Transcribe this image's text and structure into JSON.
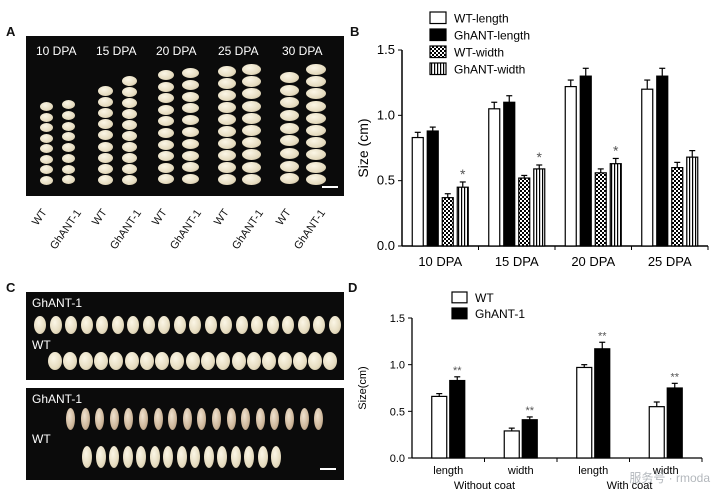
{
  "panels": {
    "a": {
      "letter": "A",
      "stages": [
        "10 DPA",
        "15 DPA",
        "20 DPA",
        "25 DPA",
        "30 DPA"
      ],
      "genotypes": [
        "WT",
        "GhANT-1"
      ]
    },
    "b": {
      "letter": "B"
    },
    "c": {
      "letter": "C",
      "top_labels": [
        "GhANT-1",
        "WT"
      ],
      "bottom_labels": [
        "GhANT-1",
        "WT"
      ]
    },
    "d": {
      "letter": "D"
    }
  },
  "watermark": "服务号 · rmoda",
  "chart_data": [
    {
      "type": "bar",
      "panel": "B",
      "categories": [
        "10 DPA",
        "15 DPA",
        "20 DPA",
        "25 DPA"
      ],
      "ylabel": "Size (cm)",
      "xlabel": "",
      "ylim": [
        0,
        1.5
      ],
      "yticks": [
        "0.0",
        "0.5",
        "1.0",
        "1.5"
      ],
      "legend_placement": "top-right",
      "series": [
        {
          "name": "WT-length",
          "pattern": "white",
          "values": [
            0.83,
            1.05,
            1.22,
            1.2
          ],
          "errors": [
            0.04,
            0.05,
            0.05,
            0.07
          ]
        },
        {
          "name": "GhANT-length",
          "pattern": "black",
          "values": [
            0.88,
            1.1,
            1.3,
            1.3
          ],
          "errors": [
            0.03,
            0.05,
            0.06,
            0.06
          ]
        },
        {
          "name": "WT-width",
          "pattern": "checker",
          "values": [
            0.37,
            0.52,
            0.56,
            0.6
          ],
          "errors": [
            0.03,
            0.02,
            0.03,
            0.04
          ]
        },
        {
          "name": "GhANT-width",
          "pattern": "vstripe",
          "values": [
            0.45,
            0.59,
            0.63,
            0.68
          ],
          "errors": [
            0.04,
            0.03,
            0.04,
            0.05
          ]
        }
      ],
      "annotations": [
        {
          "category": "10 DPA",
          "series": "GhANT-width",
          "text": "*"
        },
        {
          "category": "15 DPA",
          "series": "GhANT-width",
          "text": "*"
        },
        {
          "category": "20 DPA",
          "series": "GhANT-width",
          "text": "*"
        }
      ]
    },
    {
      "type": "bar",
      "panel": "D",
      "categories": [
        "length",
        "width",
        "length",
        "width"
      ],
      "groups": [
        "Without coat",
        "With coat"
      ],
      "ylabel": "Size(cm)",
      "xlabel": "",
      "ylim": [
        0,
        1.5
      ],
      "yticks": [
        "0.0",
        "0.5",
        "1.0",
        "1.5"
      ],
      "legend_placement": "top-left",
      "series": [
        {
          "name": "WT",
          "pattern": "white",
          "values": [
            0.66,
            0.29,
            0.97,
            0.55
          ],
          "errors": [
            0.03,
            0.03,
            0.03,
            0.05
          ]
        },
        {
          "name": "GhANT-1",
          "pattern": "black",
          "values": [
            0.83,
            0.41,
            1.17,
            0.75
          ],
          "errors": [
            0.04,
            0.03,
            0.07,
            0.05
          ]
        }
      ],
      "annotations": [
        {
          "category_index": 0,
          "series": "GhANT-1",
          "text": "**"
        },
        {
          "category_index": 1,
          "series": "GhANT-1",
          "text": "**"
        },
        {
          "category_index": 2,
          "series": "GhANT-1",
          "text": "**"
        },
        {
          "category_index": 3,
          "series": "GhANT-1",
          "text": "**"
        }
      ]
    }
  ]
}
